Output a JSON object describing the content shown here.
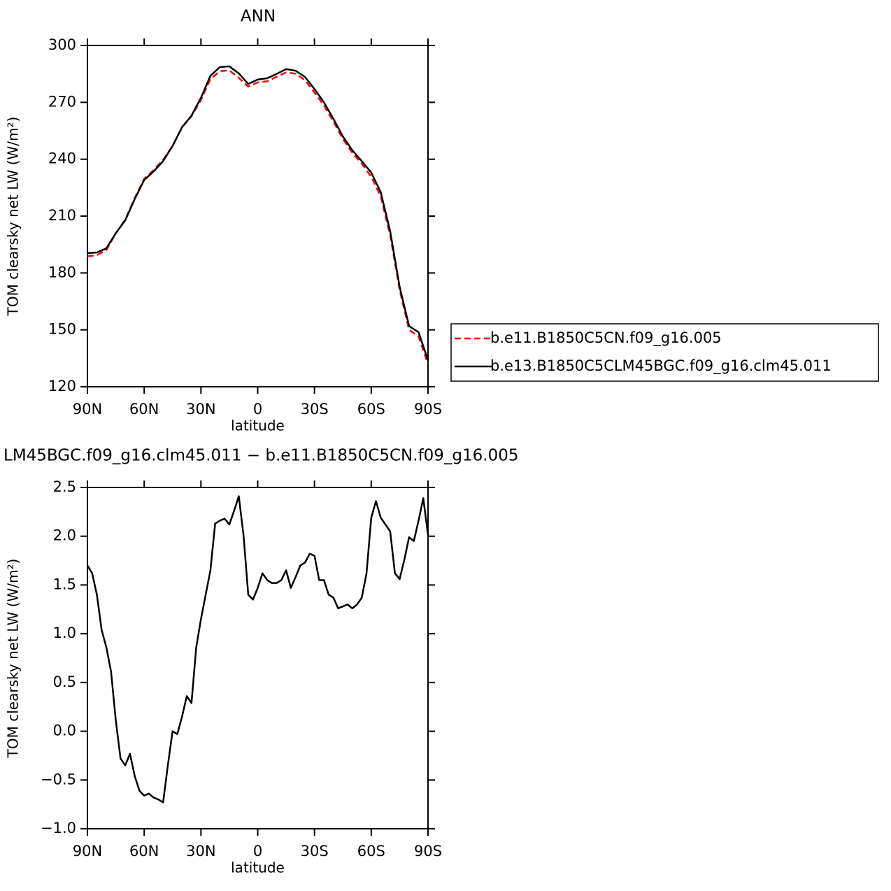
{
  "chart_data": [
    {
      "type": "line",
      "title": "ANN",
      "x_label": "latitude",
      "y_label": "TOM clearsky net LW (W/m²)",
      "x": [
        90,
        85,
        80,
        75,
        70,
        65,
        60,
        55,
        50,
        45,
        40,
        35,
        30,
        25,
        20,
        15,
        10,
        5,
        0,
        -5,
        -10,
        -15,
        -20,
        -25,
        -30,
        -35,
        -40,
        -45,
        -50,
        -55,
        -60,
        -65,
        -70,
        -75,
        -80,
        -85,
        -90
      ],
      "series": [
        {
          "name": "b.e11.B1850C5CN.f09_g16.005",
          "color": "#ff0000",
          "style": "dashed",
          "values": [
            188.8,
            189.4,
            192.1,
            200.9,
            208.2,
            219.5,
            229.7,
            234.3,
            239.7,
            247,
            256.8,
            262.7,
            271.2,
            282.3,
            286.4,
            286.9,
            282.9,
            278.3,
            280.5,
            281.1,
            283.5,
            285.8,
            285.1,
            281.7,
            275.2,
            268.4,
            259.9,
            250.7,
            243.4,
            237.6,
            230.8,
            220.4,
            200,
            171.1,
            150,
            146.6,
            132
          ]
        },
        {
          "name": "b.e13.B1850C5CLM45BGC.f09_g16.clm45.011",
          "color": "#000000",
          "style": "solid",
          "values": [
            190.5,
            190.8,
            193,
            201,
            207.8,
            219,
            229,
            233.6,
            239,
            247,
            256.9,
            263,
            272.4,
            284,
            288.6,
            289,
            285.3,
            279.7,
            282,
            282.7,
            285,
            287.5,
            286.7,
            283.4,
            277,
            270,
            261.3,
            252,
            244.7,
            239,
            233,
            222.6,
            202,
            172.7,
            152,
            148.8,
            134
          ]
        }
      ],
      "xlim": [
        90,
        -90
      ],
      "xticks": [
        {
          "value": 90,
          "label": "90N"
        },
        {
          "value": 60,
          "label": "60N"
        },
        {
          "value": 30,
          "label": "30N"
        },
        0,
        {
          "value": -30,
          "label": "30S"
        },
        {
          "value": -60,
          "label": "60S"
        },
        {
          "value": -90,
          "label": "90S"
        }
      ],
      "ylim": [
        120,
        300
      ],
      "yticks": [
        120,
        150,
        180,
        210,
        240,
        270,
        300
      ],
      "legend": "right"
    },
    {
      "type": "line",
      "title": "LM45BGC.f09_g16.clm45.011 − b.e11.B1850C5CN.f09_g16.005",
      "x_label": "latitude",
      "y_label": "TOM clearsky net LW (W/m²)",
      "x": [
        90,
        87.5,
        85,
        82.5,
        80,
        77.5,
        75,
        72.5,
        70,
        67.5,
        65,
        62.5,
        60,
        57.5,
        55,
        52.5,
        50,
        47.5,
        45,
        42.5,
        40,
        37.5,
        35,
        32.5,
        30,
        27.5,
        25,
        22.5,
        20,
        17.5,
        15,
        12.5,
        10,
        7.5,
        5,
        2.5,
        0,
        -2.5,
        -5,
        -7.5,
        -10,
        -12.5,
        -15,
        -17.5,
        -20,
        -22.5,
        -25,
        -27.5,
        -30,
        -32.5,
        -35,
        -37.5,
        -40,
        -42.5,
        -45,
        -47.5,
        -50,
        -52.5,
        -55,
        -57.5,
        -60,
        -62.5,
        -65,
        -67.5,
        -70,
        -72.5,
        -75,
        -77.5,
        -80,
        -82.5,
        -85,
        -87.5,
        -90
      ],
      "series": [
        {
          "color": "#000000",
          "style": "solid",
          "values": [
            1.7,
            1.62,
            1.4,
            1.04,
            0.86,
            0.61,
            0.11,
            -0.28,
            -0.35,
            -0.23,
            -0.46,
            -0.61,
            -0.66,
            -0.64,
            -0.68,
            -0.7,
            -0.73,
            -0.35,
            0,
            -0.03,
            0.15,
            0.36,
            0.29,
            0.86,
            1.15,
            1.4,
            1.65,
            2.13,
            2.16,
            2.18,
            2.12,
            2.26,
            2.41,
            2.01,
            1.4,
            1.35,
            1.47,
            1.62,
            1.55,
            1.52,
            1.52,
            1.55,
            1.65,
            1.47,
            1.58,
            1.7,
            1.73,
            1.82,
            1.8,
            1.55,
            1.55,
            1.4,
            1.37,
            1.26,
            1.28,
            1.3,
            1.26,
            1.3,
            1.37,
            1.62,
            2.19,
            2.36,
            2.19,
            2.12,
            2.05,
            1.62,
            1.56,
            1.76,
            1.99,
            1.95,
            2.16,
            2.39,
            2.01
          ]
        }
      ],
      "xlim": [
        90,
        -90
      ],
      "xticks": [
        {
          "value": 90,
          "label": "90N"
        },
        {
          "value": 60,
          "label": "60N"
        },
        {
          "value": 30,
          "label": "30N"
        },
        0,
        {
          "value": -30,
          "label": "30S"
        },
        {
          "value": -60,
          "label": "60S"
        },
        {
          "value": -90,
          "label": "90S"
        }
      ],
      "ylim": [
        -1,
        2.5
      ],
      "yticks": [
        {
          "value": -1,
          "label": "−1.0"
        },
        {
          "value": -0.5,
          "label": "−0.5"
        },
        {
          "value": 0,
          "label": "0.0"
        },
        0.5,
        {
          "value": 1,
          "label": "1.0"
        },
        1.5,
        {
          "value": 2,
          "label": "2.0"
        },
        2.5
      ]
    }
  ]
}
